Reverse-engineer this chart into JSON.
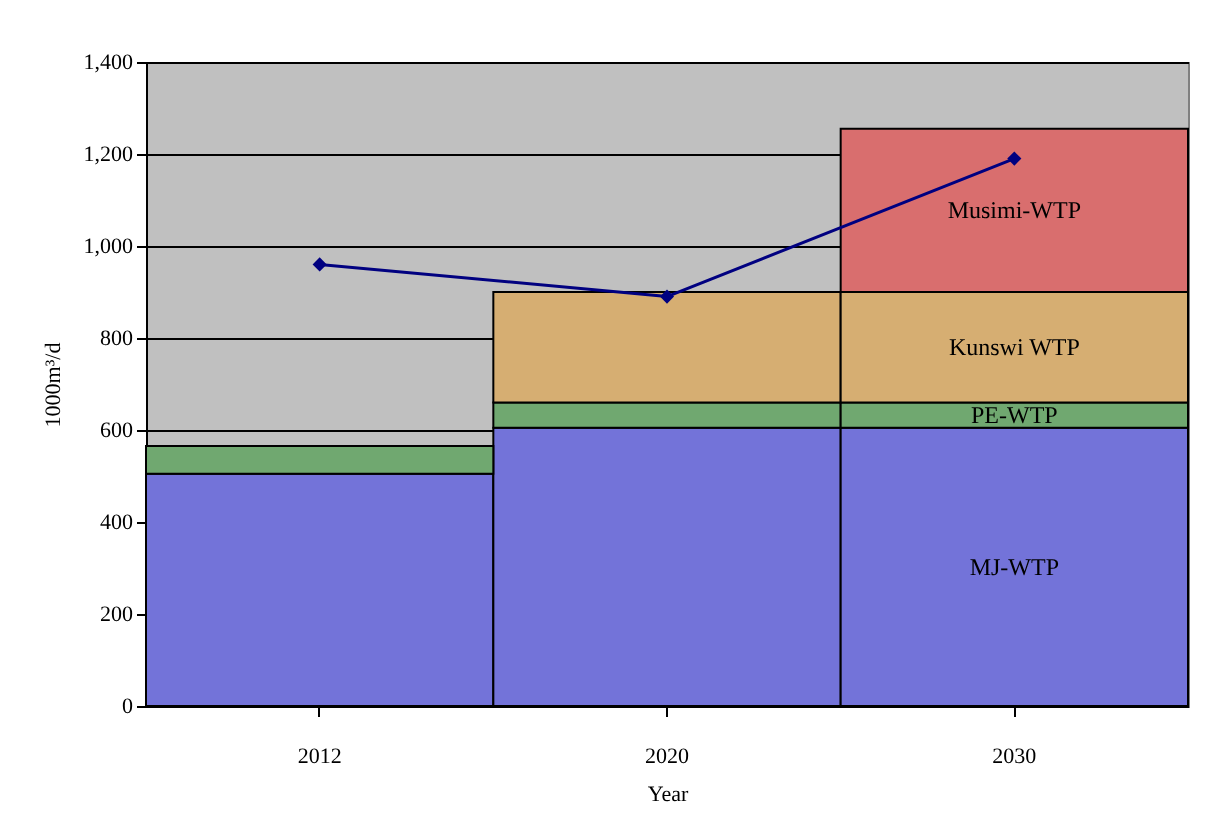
{
  "chart_data": {
    "type": "bar",
    "stacked": true,
    "xlabel": "Year",
    "ylabel": "1000m³/d",
    "categories": [
      "2012",
      "2020",
      "2030"
    ],
    "series": [
      {
        "name": "MJ-WTP",
        "color": "#7373d9",
        "values": [
          505,
          605,
          605
        ]
      },
      {
        "name": "PE-WTP",
        "color": "#70a870",
        "values": [
          60,
          55,
          55
        ]
      },
      {
        "name": "Kunswi WTP",
        "color": "#d6ae72",
        "values": [
          null,
          240,
          240
        ]
      },
      {
        "name": "Musimi-WTP",
        "color": "#d96e6e",
        "values": [
          null,
          null,
          355
        ]
      },
      {
        "type": "line",
        "color": "#000080",
        "values": [
          960,
          890,
          1190
        ],
        "marker": "diamond"
      }
    ],
    "ylim": [
      0,
      1400
    ],
    "yticks": [
      {
        "value": 0,
        "label": "0"
      },
      {
        "value": 200,
        "label": "200"
      },
      {
        "value": 400,
        "label": "400"
      },
      {
        "value": 600,
        "label": "600"
      },
      {
        "value": 800,
        "label": "800"
      },
      {
        "value": 1000,
        "label": "1,000"
      },
      {
        "value": 1200,
        "label": "1,200"
      },
      {
        "value": 1400,
        "label": "1,400"
      }
    ],
    "grid": "y"
  }
}
